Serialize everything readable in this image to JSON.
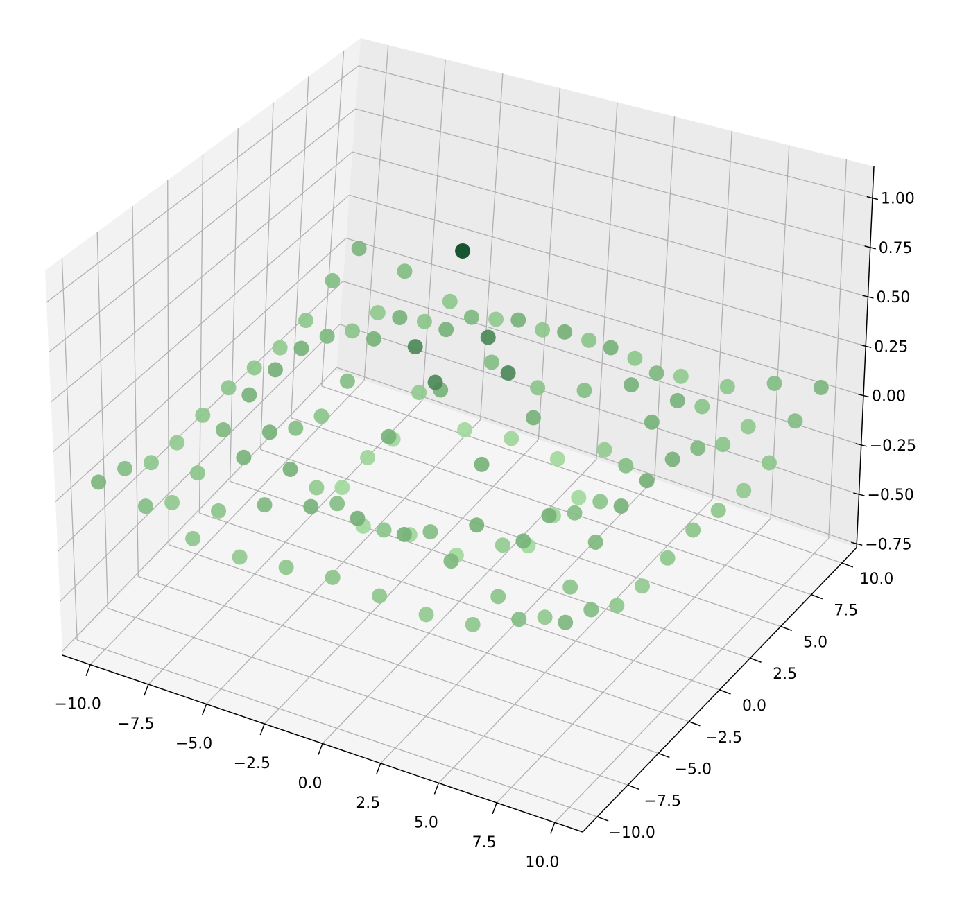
{
  "chart_data": {
    "type": "scatter3d",
    "x": [
      -10,
      -8,
      -6,
      -4,
      -2,
      0,
      2,
      4,
      6,
      8,
      10
    ],
    "y": [
      -10,
      -8,
      -6,
      -4,
      -2,
      0,
      2,
      4,
      6,
      8,
      10
    ],
    "z": [
      [
        0.07,
        0.02,
        -0.07,
        -0.09,
        -0.07,
        -0.05,
        -0.07,
        -0.09,
        -0.07,
        0.02,
        0.07
      ],
      [
        0.02,
        -0.08,
        -0.05,
        0.05,
        0.11,
        0.12,
        0.11,
        0.05,
        -0.05,
        -0.08,
        0.02
      ],
      [
        -0.07,
        -0.05,
        0.1,
        0.11,
        0.01,
        -0.05,
        0.01,
        0.11,
        0.1,
        -0.05,
        -0.07
      ],
      [
        -0.09,
        0.05,
        0.11,
        -0.1,
        -0.22,
        -0.19,
        -0.22,
        -0.1,
        0.11,
        0.05,
        -0.09
      ],
      [
        -0.07,
        0.11,
        0.01,
        -0.22,
        0.11,
        0.45,
        0.11,
        -0.22,
        0.01,
        0.11,
        -0.07
      ],
      [
        -0.05,
        0.12,
        -0.05,
        -0.19,
        0.45,
        1,
        0.45,
        -0.19,
        -0.05,
        0.12,
        -0.05
      ],
      [
        -0.07,
        0.11,
        0.01,
        -0.22,
        0.11,
        0.45,
        0.11,
        -0.22,
        0.01,
        0.11,
        -0.07
      ],
      [
        -0.09,
        0.05,
        0.11,
        -0.1,
        -0.22,
        -0.19,
        -0.22,
        -0.1,
        0.11,
        0.05,
        -0.09
      ],
      [
        -0.07,
        -0.05,
        0.1,
        0.11,
        0.01,
        -0.05,
        0.01,
        0.11,
        0.1,
        -0.05,
        -0.07
      ],
      [
        0.02,
        -0.08,
        -0.05,
        0.05,
        0.11,
        0.12,
        0.11,
        0.05,
        -0.05,
        -0.08,
        0.02
      ],
      [
        0.07,
        0.02,
        -0.07,
        -0.09,
        -0.07,
        -0.05,
        -0.07,
        -0.09,
        -0.07,
        0.02,
        0.07
      ]
    ],
    "cmap": [
      "#a1d99b",
      "#00441b"
    ],
    "xlim": [
      -11.2,
      11.2
    ],
    "ylim": [
      -11.2,
      11.2
    ],
    "zlim": [
      -0.77,
      1.16
    ],
    "xticks": [
      {
        "value": -10,
        "label": "−10.0"
      },
      {
        "value": -7.5,
        "label": "−7.5"
      },
      {
        "value": -5,
        "label": "−5.0"
      },
      {
        "value": -2.5,
        "label": "−2.5"
      },
      {
        "value": 0,
        "label": "0.0"
      },
      {
        "value": 2.5,
        "label": "2.5"
      },
      {
        "value": 5,
        "label": "5.0"
      },
      {
        "value": 7.5,
        "label": "7.5"
      },
      {
        "value": 10,
        "label": "10.0"
      }
    ],
    "yticks": [
      {
        "value": -10,
        "label": "−10.0"
      },
      {
        "value": -7.5,
        "label": "−7.5"
      },
      {
        "value": -5,
        "label": "−5.0"
      },
      {
        "value": -2.5,
        "label": "−2.5"
      },
      {
        "value": 0,
        "label": "0.0"
      },
      {
        "value": 2.5,
        "label": "2.5"
      },
      {
        "value": 5,
        "label": "5.0"
      },
      {
        "value": 7.5,
        "label": "7.5"
      },
      {
        "value": 10,
        "label": "10.0"
      }
    ],
    "zticks": [
      {
        "value": -0.75,
        "label": "−0.75"
      },
      {
        "value": -0.5,
        "label": "−0.50"
      },
      {
        "value": -0.25,
        "label": "−0.25"
      },
      {
        "value": 0,
        "label": "0.00"
      },
      {
        "value": 0.25,
        "label": "0.25"
      },
      {
        "value": 0.5,
        "label": "0.50"
      },
      {
        "value": 0.75,
        "label": "0.75"
      },
      {
        "value": 1,
        "label": "1.00"
      }
    ],
    "grid": true
  }
}
